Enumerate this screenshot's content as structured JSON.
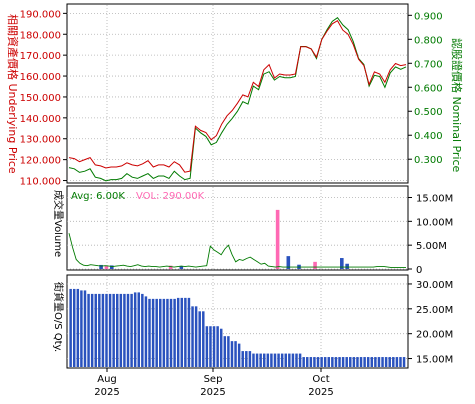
{
  "chart_data": [
    {
      "type": "line",
      "ylabel_left": "相關資產價格 Underlying Price",
      "ylabel_right": "認股證價格 Nominal Price",
      "yticks_left": [
        "190.000",
        "180.000",
        "170.000",
        "160.000",
        "150.000",
        "140.000",
        "130.000",
        "120.000",
        "110.000"
      ],
      "yticks_right": [
        "0.900",
        "0.800",
        "0.700",
        "0.600",
        "0.500",
        "0.400",
        "0.300"
      ],
      "ylim_left": [
        109.3,
        194
      ],
      "ylim_right": [
        0.205,
        0.943
      ],
      "grid": true,
      "colors": {
        "underlying": "#cc0000",
        "warrant": "#007a00",
        "left_axis_text": "#cc0000",
        "right_axis_text": "#007a00"
      },
      "series": [
        {
          "key": "underlying",
          "values": [
            121,
            120.5,
            119,
            120,
            121,
            117.5,
            117,
            116,
            116.5,
            116.5,
            117,
            118.5,
            117.5,
            117,
            118,
            119.5,
            116.5,
            117.5,
            117.5,
            116.5,
            119,
            117.5,
            114,
            114.5,
            136,
            134,
            133,
            129.5,
            131.5,
            137,
            141,
            143.5,
            147,
            151,
            150,
            157,
            155,
            163,
            165.5,
            159,
            161,
            160.5,
            160.5,
            161,
            174,
            174,
            173,
            169,
            177.5,
            181.5,
            185,
            186.5,
            182,
            180,
            175,
            168,
            165,
            156,
            162,
            161,
            157,
            163,
            166,
            165,
            165.5
          ]
        },
        {
          "key": "warrant",
          "values": [
            0.265,
            0.26,
            0.245,
            0.25,
            0.26,
            0.225,
            0.22,
            0.21,
            0.215,
            0.215,
            0.22,
            0.24,
            0.225,
            0.22,
            0.23,
            0.24,
            0.22,
            0.23,
            0.23,
            0.22,
            0.25,
            0.23,
            0.215,
            0.22,
            0.43,
            0.41,
            0.395,
            0.36,
            0.37,
            0.41,
            0.445,
            0.47,
            0.5,
            0.54,
            0.53,
            0.605,
            0.59,
            0.655,
            0.665,
            0.63,
            0.645,
            0.64,
            0.64,
            0.645,
            0.77,
            0.77,
            0.76,
            0.72,
            0.8,
            0.84,
            0.875,
            0.89,
            0.86,
            0.84,
            0.79,
            0.72,
            0.695,
            0.605,
            0.65,
            0.645,
            0.6,
            0.66,
            0.685,
            0.675,
            0.685
          ]
        }
      ]
    },
    {
      "type": "bar",
      "ylabel": "成交量Volume",
      "yticks": [
        "15.00M",
        "10.00M",
        "5.00M",
        "0"
      ],
      "ylim": [
        0,
        17.2
      ],
      "avg_label": "Avg: 6.00K",
      "vol_label": "VOL: 290.00K",
      "colors": {
        "avg_text": "#007a00",
        "vol_text": "#ff69b4",
        "call_bar": "#ff69b4",
        "put_bar": "#2a52be",
        "underlying_volume_line": "#007a00"
      },
      "bars": [
        {
          "index": 6,
          "value": 0.85,
          "kind": "put"
        },
        {
          "index": 7,
          "value": 0.6,
          "kind": "call"
        },
        {
          "index": 8,
          "value": 0.75,
          "kind": "put"
        },
        {
          "index": 19,
          "value": 0.7,
          "kind": "call"
        },
        {
          "index": 21,
          "value": 0.55,
          "kind": "put"
        },
        {
          "index": 39,
          "value": 12.4,
          "kind": "call"
        },
        {
          "index": 41,
          "value": 2.7,
          "kind": "put"
        },
        {
          "index": 43,
          "value": 0.9,
          "kind": "put"
        },
        {
          "index": 46,
          "value": 1.5,
          "kind": "call"
        },
        {
          "index": 51,
          "value": 2.3,
          "kind": "put"
        },
        {
          "index": 52,
          "value": 1.1,
          "kind": "put"
        }
      ],
      "underlying_volume": [
        7.5,
        4.5,
        2.0,
        1.2,
        0.8,
        0.7,
        0.9,
        0.8,
        0.7,
        0.6,
        0.7,
        0.6,
        0.5,
        0.6,
        0.7,
        0.8,
        0.6,
        0.5,
        0.7,
        0.9,
        0.6,
        0.5,
        0.6,
        0.5,
        0.5,
        0.4,
        0.5,
        0.6,
        0.5,
        0.4,
        0.5,
        0.6,
        0.5,
        0.6,
        0.5,
        0.4,
        0.5,
        0.6,
        0.7,
        4.8,
        4.0,
        3.5,
        3.0,
        4.2,
        5.0,
        3.0,
        1.5,
        2.0,
        1.8,
        2.2,
        2.5,
        2.0,
        1.5,
        1.0,
        1.2,
        0.6,
        0.5,
        0.4,
        0.5,
        0.4,
        0.4,
        0.4,
        0.4,
        0.4,
        0.4,
        0.4,
        0.4,
        0.4,
        0.4,
        0.4,
        0.4,
        0.4,
        0.4,
        0.4,
        0.4,
        0.4,
        0.4,
        0.4,
        0.4,
        0.4,
        0.4,
        0.4,
        0.4,
        0.4,
        0.4,
        0.5,
        0.5,
        0.5,
        0.4,
        0.3,
        0.3,
        0.3,
        0.3,
        0.3
      ]
    },
    {
      "type": "bar",
      "ylabel": "街貨量O/S Qty.",
      "yticks": [
        "30.00M",
        "25.00M",
        "20.00M",
        "15.00M"
      ],
      "ylim": [
        13.3,
        31.6
      ],
      "color": "#2a52be",
      "values": [
        29,
        29,
        29,
        28.7,
        28.7,
        28,
        28,
        28,
        28,
        28,
        28,
        28,
        28,
        28,
        28,
        28,
        28,
        28,
        28.3,
        28.3,
        28,
        27.5,
        27,
        27,
        27,
        27,
        27,
        27,
        27,
        27,
        27.2,
        27.2,
        27.2,
        27.2,
        25.5,
        25.5,
        24.5,
        24.5,
        21.5,
        21.5,
        21.5,
        21.5,
        21,
        19.5,
        19.5,
        18.5,
        18.5,
        18,
        16.5,
        16.5,
        16.5,
        16,
        16,
        16,
        16,
        16,
        16,
        16,
        16,
        16,
        16,
        16,
        16,
        16,
        16,
        15.3,
        15.3,
        15.3,
        15.3,
        15.3,
        15.3,
        15.3,
        15.3,
        15.3,
        15.3,
        15.3,
        15.3,
        15.3,
        15.3,
        15.3,
        15.3,
        15.3,
        15.3,
        15.3,
        15.3,
        15.3,
        15.3,
        15.3,
        15.3,
        15.3,
        15.3,
        15.3,
        15.3,
        15.3
      ]
    }
  ],
  "x_axis": [
    {
      "month": "Aug",
      "year": "2025"
    },
    {
      "month": "Sep",
      "year": "2025"
    },
    {
      "month": "Oct",
      "year": "2025"
    }
  ]
}
